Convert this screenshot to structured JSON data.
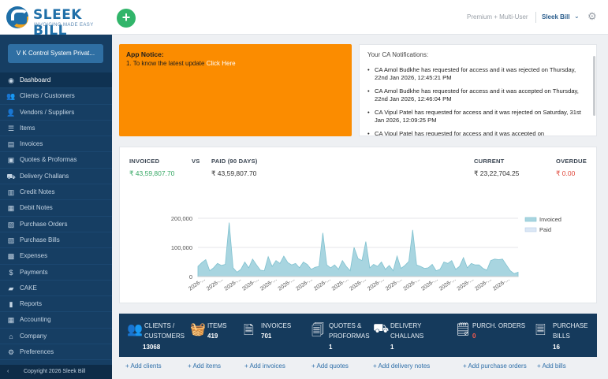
{
  "header": {
    "logo_name": "SLEEK BILL",
    "logo_tagline": "INVOICING MADE EASY",
    "add_label": "+",
    "plan": "Premium + Multi-User",
    "account": "Sleek Bill",
    "account_caret": "⌄",
    "gear": "⚙"
  },
  "sidebar": {
    "company": "V K Control System Privat...",
    "items": [
      {
        "label": "Dashboard",
        "icon": "◉",
        "active": true
      },
      {
        "label": "Clients / Customers",
        "icon": "👥"
      },
      {
        "label": "Vendors / Suppliers",
        "icon": "👤"
      },
      {
        "label": "Items",
        "icon": "☰"
      },
      {
        "label": "Invoices",
        "icon": "▤"
      },
      {
        "label": "Quotes & Proformas",
        "icon": "▣"
      },
      {
        "label": "Delivery Challans",
        "icon": "⛟"
      },
      {
        "label": "Credit Notes",
        "icon": "▥"
      },
      {
        "label": "Debit Notes",
        "icon": "▦"
      },
      {
        "label": "Purchase Orders",
        "icon": "▧"
      },
      {
        "label": "Purchase Bills",
        "icon": "▨"
      },
      {
        "label": "Expenses",
        "icon": "▩"
      },
      {
        "label": "Payments",
        "icon": "$"
      },
      {
        "label": "CAKE",
        "icon": "▰"
      },
      {
        "label": "Reports",
        "icon": "▮"
      },
      {
        "label": "Accounting",
        "icon": "▦"
      },
      {
        "label": "Company",
        "icon": "⌂"
      },
      {
        "label": "Preferences",
        "icon": "⚙"
      }
    ],
    "footer_chevron": "‹",
    "copyright": "Copyright 2026 Sleek Bill"
  },
  "notice": {
    "title": "App Notice:",
    "line_prefix": "1. To know the latest update ",
    "link": "Click Here"
  },
  "ca": {
    "title": "Your CA Notifications:",
    "items": [
      "CA Amol Budkhe has requested for access and it was rejected on Thursday, 22nd Jan 2026, 12:45:21 PM",
      "CA Amol Budkhe has requested for access and it was accepted on Thursday, 22nd Jan 2026, 12:46:04 PM",
      "CA Vipul Patel has requested for access and it was rejected on Saturday, 31st Jan 2026, 12:09:25 PM",
      "CA Vipul Patel has requested for access and it was accepted on"
    ]
  },
  "stats": {
    "invoiced_label": "INVOICED",
    "vs_label": "VS",
    "paid_label": "PAID (90 DAYS)",
    "current_label": "CURRENT",
    "overdue_label": "OVERDUE",
    "invoiced_value": "₹ 43,59,807.70",
    "paid_value": "₹ 43,59,807.70",
    "current_value": "₹ 23,22,704.25",
    "overdue_value": "₹ 0.00"
  },
  "chart_data": {
    "type": "area",
    "ylim": [
      0,
      200000
    ],
    "y_ticks": [
      0,
      100000,
      200000
    ],
    "y_tick_labels": [
      "0",
      "100,000",
      "200,000"
    ],
    "x_tick_label": "2026-...",
    "x_tick_count": 18,
    "legend_position": "right",
    "grid": true,
    "series": [
      {
        "name": "Invoiced",
        "color": "#a8d5e0",
        "values": [
          35000,
          48000,
          58000,
          20000,
          30000,
          45000,
          38000,
          42000,
          185000,
          30000,
          15000,
          25000,
          50000,
          30000,
          60000,
          40000,
          22000,
          20000,
          68000,
          35000,
          55000,
          45000,
          70000,
          48000,
          40000,
          45000,
          30000,
          50000,
          42000,
          25000,
          32000,
          35000,
          150000,
          40000,
          30000,
          40000,
          25000,
          55000,
          35000,
          20000,
          100000,
          62000,
          55000,
          120000,
          30000,
          42000,
          35000,
          50000,
          25000,
          38000,
          20000,
          70000,
          28000,
          38000,
          52000,
          160000,
          40000,
          35000,
          28000,
          30000,
          42000,
          20000,
          25000,
          50000,
          45000,
          55000,
          25000,
          35000,
          65000,
          30000,
          45000,
          40000,
          40000,
          28000,
          22000,
          55000,
          60000,
          58000,
          60000,
          40000,
          20000,
          10000,
          15000
        ]
      },
      {
        "name": "Paid",
        "color": "#dbe7f5",
        "values": []
      }
    ]
  },
  "summary": [
    {
      "icon": "👥",
      "label": "CLIENTS /\nCUSTOMERS",
      "count": "13068"
    },
    {
      "icon": "🧺",
      "label": "ITEMS",
      "count": "419"
    },
    {
      "icon": "🗎",
      "label": "INVOICES",
      "count": "701"
    },
    {
      "icon": "🗐",
      "label": "QUOTES &\nPROFORMAS",
      "count": "1"
    },
    {
      "icon": "⛟",
      "label": "DELIVERY\nCHALLANS",
      "count": "1"
    },
    {
      "icon": "🗒",
      "label": "PURCH. ORDERS",
      "count": "0"
    },
    {
      "icon": "🗏",
      "label": "PURCHASE\nBILLS",
      "count": "16"
    }
  ],
  "links": [
    "+ Add clients",
    "+ Add items",
    "+ Add invoices",
    "+ Add quotes",
    "+ Add delivery notes",
    "+ Add purchase orders",
    "+ Add bills"
  ]
}
